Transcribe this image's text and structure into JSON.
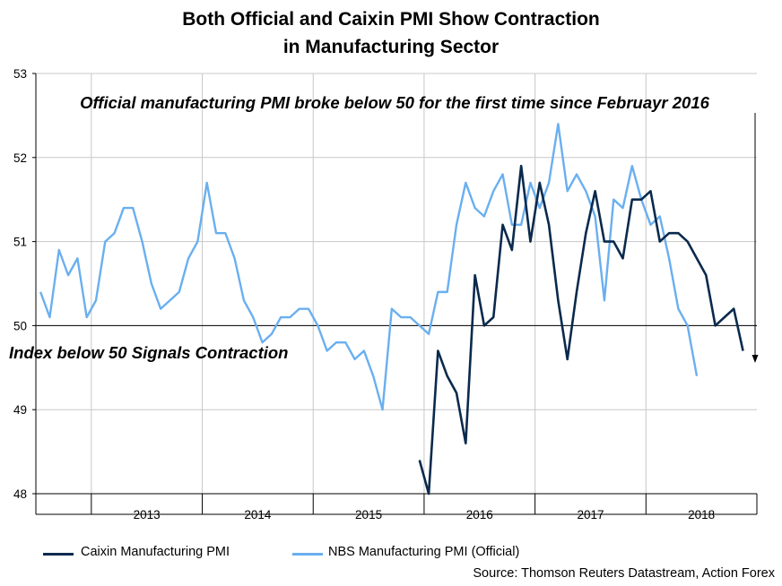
{
  "chart_data": {
    "type": "line",
    "title_lines": [
      "Both Official and Caixin PMI Show Contraction",
      "in Manufacturing Sector"
    ],
    "ylim": [
      48,
      53
    ],
    "yticks": [
      "48",
      "49",
      "50",
      "51",
      "52",
      "53"
    ],
    "reference_line": 50,
    "x_start": "2012-07",
    "x_end": "2018-12",
    "years": [
      "2013",
      "2014",
      "2015",
      "2016",
      "2017",
      "2018"
    ],
    "annotations": {
      "top": "Official manufacturing PMI broke below 50 for the first time since Februayr 2016",
      "middle": "Index below 50 Signals Contraction"
    },
    "series": [
      {
        "name": "Caixin Manufacturing PMI",
        "color": "#0a2a4d",
        "start": "2015-12",
        "values": [
          48.4,
          48.0,
          49.7,
          49.4,
          49.2,
          48.6,
          50.6,
          50.0,
          50.1,
          51.2,
          50.9,
          51.9,
          51.0,
          51.7,
          51.2,
          50.3,
          49.6,
          50.4,
          51.1,
          51.6,
          51.0,
          51.0,
          50.8,
          51.5,
          51.5,
          51.6,
          51.0,
          51.1,
          51.1,
          51.0,
          50.8,
          50.6,
          50.0,
          50.1,
          50.2,
          49.7
        ]
      },
      {
        "name": "NBS Manufacturing PMI (Official)",
        "color": "#6aaff0",
        "start": "2012-07",
        "values": [
          50.4,
          50.1,
          50.9,
          50.6,
          50.8,
          50.1,
          50.3,
          51.0,
          51.1,
          51.4,
          51.4,
          51.0,
          50.5,
          50.2,
          50.3,
          50.4,
          50.8,
          51.0,
          51.7,
          51.1,
          51.1,
          50.8,
          50.3,
          50.1,
          49.8,
          49.9,
          50.1,
          50.1,
          50.2,
          50.2,
          50.0,
          49.7,
          49.8,
          49.8,
          49.6,
          49.7,
          49.4,
          49.0,
          50.2,
          50.1,
          50.1,
          50.0,
          49.9,
          50.4,
          50.4,
          51.2,
          51.7,
          51.4,
          51.3,
          51.6,
          51.8,
          51.2,
          51.2,
          51.7,
          51.4,
          51.7,
          52.4,
          51.6,
          51.8,
          51.6,
          51.3,
          50.3,
          51.5,
          51.4,
          51.9,
          51.5,
          51.2,
          51.3,
          50.8,
          50.2,
          50.0,
          49.4
        ]
      }
    ]
  },
  "legend": {
    "caixin_label": "Caixin Manufacturing PMI",
    "nbs_label": "NBS Manufacturing PMI (Official)"
  },
  "source": "Source: Thomson Reuters Datastream, Action Forex",
  "colors": {
    "caixin": "#0a2a4d",
    "nbs": "#6aaff0",
    "grid": "#c8c8c8",
    "axis": "#000000"
  }
}
